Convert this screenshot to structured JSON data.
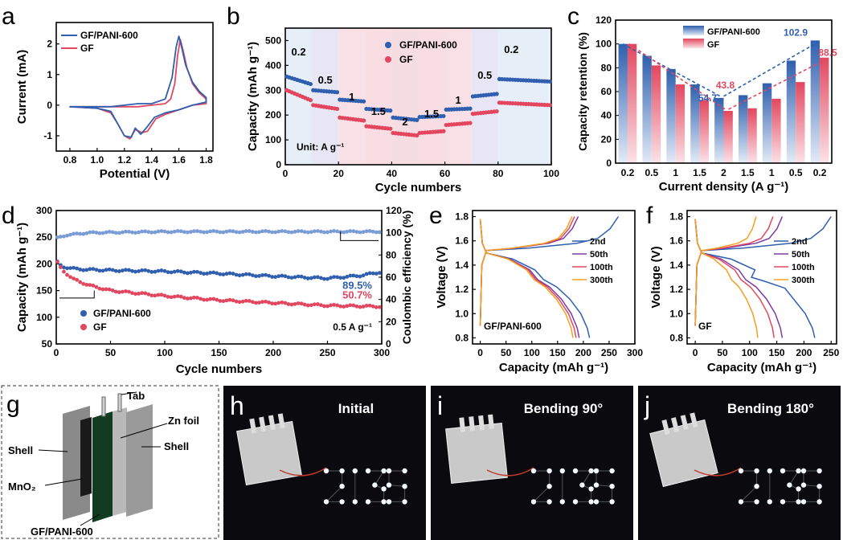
{
  "panel_letters": [
    "a",
    "b",
    "c",
    "d",
    "e",
    "f",
    "g",
    "h",
    "i",
    "j"
  ],
  "colors": {
    "blue": "#2f5fae",
    "red": "#e2475f",
    "photo_bg": "#0b0b0f",
    "led": "#f4f8ff"
  },
  "chart_data": [
    {
      "id": "a",
      "type": "line",
      "xlabel": "Potential (V)",
      "ylabel": "Current (mA)",
      "xlim": [
        0.7,
        1.85
      ],
      "ylim": [
        -1.5,
        2.7
      ],
      "xticks": [
        "0.8",
        "1.0",
        "1.2",
        "1.4",
        "1.6",
        "1.8"
      ],
      "yticks": [
        "-1",
        "0",
        "1",
        "2"
      ],
      "legend": "top-left",
      "series": [
        {
          "name": "GF/PANI-600",
          "color": "#2f5fae",
          "x": [
            0.8,
            1.0,
            1.1,
            1.15,
            1.2,
            1.25,
            1.28,
            1.32,
            1.36,
            1.42,
            1.5,
            1.6,
            1.7,
            1.8,
            1.8,
            1.75,
            1.7,
            1.65,
            1.62,
            1.6,
            1.58,
            1.55,
            1.5,
            1.4,
            1.3,
            1.2,
            1.1,
            0.9,
            0.8
          ],
          "y": [
            -0.05,
            -0.1,
            -0.2,
            -0.6,
            -1.0,
            -1.05,
            -0.75,
            -0.95,
            -0.75,
            -0.4,
            -0.25,
            -0.15,
            0.0,
            0.1,
            0.25,
            0.45,
            0.75,
            1.3,
            1.9,
            2.25,
            1.9,
            0.9,
            0.2,
            0.05,
            0.05,
            0.0,
            -0.05,
            -0.05,
            -0.05
          ]
        },
        {
          "name": "GF",
          "color": "#e2475f",
          "x": [
            0.8,
            1.0,
            1.1,
            1.15,
            1.2,
            1.24,
            1.28,
            1.33,
            1.37,
            1.43,
            1.5,
            1.6,
            1.7,
            1.8,
            1.8,
            1.75,
            1.7,
            1.66,
            1.63,
            1.61,
            1.59,
            1.57,
            1.54,
            1.5,
            1.4,
            1.3,
            1.2,
            1.1,
            0.9,
            0.8
          ],
          "y": [
            -0.05,
            -0.1,
            -0.25,
            -0.6,
            -1.0,
            -1.1,
            -0.8,
            -0.9,
            -0.85,
            -0.45,
            -0.3,
            -0.15,
            0.0,
            0.05,
            0.2,
            0.4,
            0.7,
            1.2,
            1.8,
            2.15,
            1.6,
            0.7,
            0.2,
            0.05,
            0.0,
            -0.05,
            -0.05,
            -0.05,
            -0.05,
            -0.05
          ]
        }
      ]
    },
    {
      "id": "b",
      "type": "scatter",
      "xlabel": "Cycle numbers",
      "ylabel": "Capacity (mAh g⁻¹)",
      "xlim": [
        0,
        100
      ],
      "ylim": [
        0,
        550
      ],
      "xticks": [
        "0",
        "20",
        "40",
        "60",
        "80",
        "100"
      ],
      "yticks": [
        "0",
        "100",
        "200",
        "300",
        "400",
        "500"
      ],
      "legend": "top-right",
      "rate_labels": [
        "0.2",
        "0.5",
        "1",
        "1.5",
        "2",
        "1.5",
        "1",
        "0.5",
        "0.2"
      ],
      "annotation": "Unit: A g⁻¹",
      "segments": [
        [
          0,
          10
        ],
        [
          10,
          20
        ],
        [
          20,
          30
        ],
        [
          30,
          40
        ],
        [
          40,
          50
        ],
        [
          50,
          60
        ],
        [
          60,
          70
        ],
        [
          70,
          80
        ],
        [
          80,
          100
        ]
      ],
      "series": [
        {
          "name": "GF/PANI-600",
          "color": "#2f5fae",
          "segment_values": [
            [
              355,
              325
            ],
            [
              300,
              292
            ],
            [
              262,
              255
            ],
            [
              225,
              218
            ],
            [
              190,
              180
            ],
            [
              192,
              196
            ],
            [
              222,
              226
            ],
            [
              275,
              285
            ],
            [
              345,
              335
            ]
          ]
        },
        {
          "name": "GF",
          "color": "#e2475f",
          "segment_values": [
            [
              300,
              260
            ],
            [
              240,
              225
            ],
            [
              190,
              178
            ],
            [
              155,
              145
            ],
            [
              128,
              118
            ],
            [
              128,
              135
            ],
            [
              160,
              168
            ],
            [
              205,
              215
            ],
            [
              250,
              240
            ]
          ]
        }
      ]
    },
    {
      "id": "c",
      "type": "bar",
      "xlabel": "Current density (A g⁻¹)",
      "ylabel": "Capacity retention (%)",
      "categories": [
        "0.2",
        "0.5",
        "1",
        "1.5",
        "2",
        "1.5",
        "1",
        "0.5",
        "0.2"
      ],
      "ylim": [
        0,
        120
      ],
      "yticks": [
        "0",
        "20",
        "40",
        "60",
        "80",
        "100",
        "120"
      ],
      "legend": "top-center",
      "series": [
        {
          "name": "GF/PANI-600",
          "color": "#2f5fae",
          "values": [
            100,
            90,
            79,
            66,
            54.7,
            57,
            67,
            86,
            102.9
          ]
        },
        {
          "name": "GF",
          "color": "#e2475f",
          "values": [
            100,
            82,
            66,
            53,
            43.8,
            46,
            54,
            68,
            88.5
          ]
        }
      ],
      "annotations": [
        "54.7",
        "43.8",
        "102.9",
        "88.5"
      ]
    },
    {
      "id": "d",
      "type": "scatter",
      "xlabel": "Cycle numbers",
      "ylabel": "Capacity (mAh g⁻¹)",
      "y2label": "Coulombic efficiency (%)",
      "xlim": [
        0,
        300
      ],
      "ylim": [
        50,
        300
      ],
      "y2lim": [
        0,
        120
      ],
      "xticks": [
        "0",
        "50",
        "100",
        "150",
        "200",
        "250",
        "300"
      ],
      "yticks": [
        "50",
        "100",
        "150",
        "200",
        "250",
        "300"
      ],
      "y2ticks": [
        "0",
        "20",
        "40",
        "60",
        "80",
        "100",
        "120"
      ],
      "legend": "bottom-left",
      "annotation": "0.5 A g⁻¹",
      "retention_labels": [
        "89.5%",
        "50.7%"
      ],
      "series": [
        {
          "name": "GF/PANI-600",
          "color": "#2f5fae",
          "x": [
            0,
            5,
            20,
            50,
            100,
            150,
            200,
            250,
            280,
            300
          ],
          "y": [
            205,
            195,
            190,
            188,
            186,
            182,
            177,
            173,
            178,
            185
          ]
        },
        {
          "name": "GF",
          "color": "#e2475f",
          "x": [
            0,
            5,
            15,
            30,
            50,
            100,
            150,
            200,
            250,
            300
          ],
          "y": [
            205,
            190,
            172,
            160,
            150,
            140,
            132,
            127,
            122,
            120
          ]
        },
        {
          "name": "CE",
          "color": "#7a9cd6",
          "axis": "y2",
          "x": [
            0,
            10,
            30,
            100,
            200,
            300
          ],
          "y": [
            95,
            98,
            100,
            101,
            101,
            101
          ]
        }
      ]
    },
    {
      "id": "e",
      "type": "line",
      "xlabel": "Capacity (mAh g⁻¹)",
      "ylabel": "Voltage (V)",
      "xlim": [
        -15,
        300
      ],
      "ylim": [
        0.75,
        1.85
      ],
      "xticks": [
        "0",
        "50",
        "100",
        "150",
        "200",
        "250",
        "300"
      ],
      "yticks": [
        "0.8",
        "1.0",
        "1.2",
        "1.4",
        "1.6",
        "1.8"
      ],
      "legend": "top-right",
      "label": "GF/PANI-600",
      "series": [
        {
          "name": "2nd",
          "color": "#2f5fae",
          "cap": 212,
          "charge_cap": 268
        },
        {
          "name": "50th",
          "color": "#7b3aa4",
          "cap": 192,
          "charge_cap": 190
        },
        {
          "name": "100th",
          "color": "#e2475f",
          "cap": 186,
          "charge_cap": 183
        },
        {
          "name": "300th",
          "color": "#f2a01e",
          "cap": 180,
          "charge_cap": 178
        }
      ]
    },
    {
      "id": "f",
      "type": "line",
      "xlabel": "Capacity (mAh g⁻¹)",
      "ylabel": "Voltage (V)",
      "xlim": [
        -15,
        260
      ],
      "ylim": [
        0.75,
        1.85
      ],
      "xticks": [
        "0",
        "50",
        "100",
        "150",
        "200",
        "250"
      ],
      "yticks": [
        "0.8",
        "1.0",
        "1.2",
        "1.4",
        "1.6",
        "1.8"
      ],
      "legend": "top-right",
      "label": "GF",
      "series": [
        {
          "name": "2nd",
          "color": "#2f5fae",
          "cap": 220,
          "charge_cap": 250
        },
        {
          "name": "50th",
          "color": "#7b3aa4",
          "cap": 160,
          "charge_cap": 160
        },
        {
          "name": "100th",
          "color": "#e2475f",
          "cap": 145,
          "charge_cap": 143
        },
        {
          "name": "300th",
          "color": "#f2a01e",
          "cap": 115,
          "charge_cap": 112
        }
      ]
    }
  ],
  "schematic": {
    "tab": "Tab",
    "zn_foil": "Zn foil",
    "shell_left": "Shell",
    "shell_right": "Shell",
    "mno2": "MnO₂",
    "gf": "GF/PANI-600"
  },
  "photos": [
    {
      "title": "Initial",
      "led_text": "2135"
    },
    {
      "title": "Bending 90°",
      "led_text": "2135"
    },
    {
      "title": "Bending 180°",
      "led_text": "2135"
    }
  ]
}
